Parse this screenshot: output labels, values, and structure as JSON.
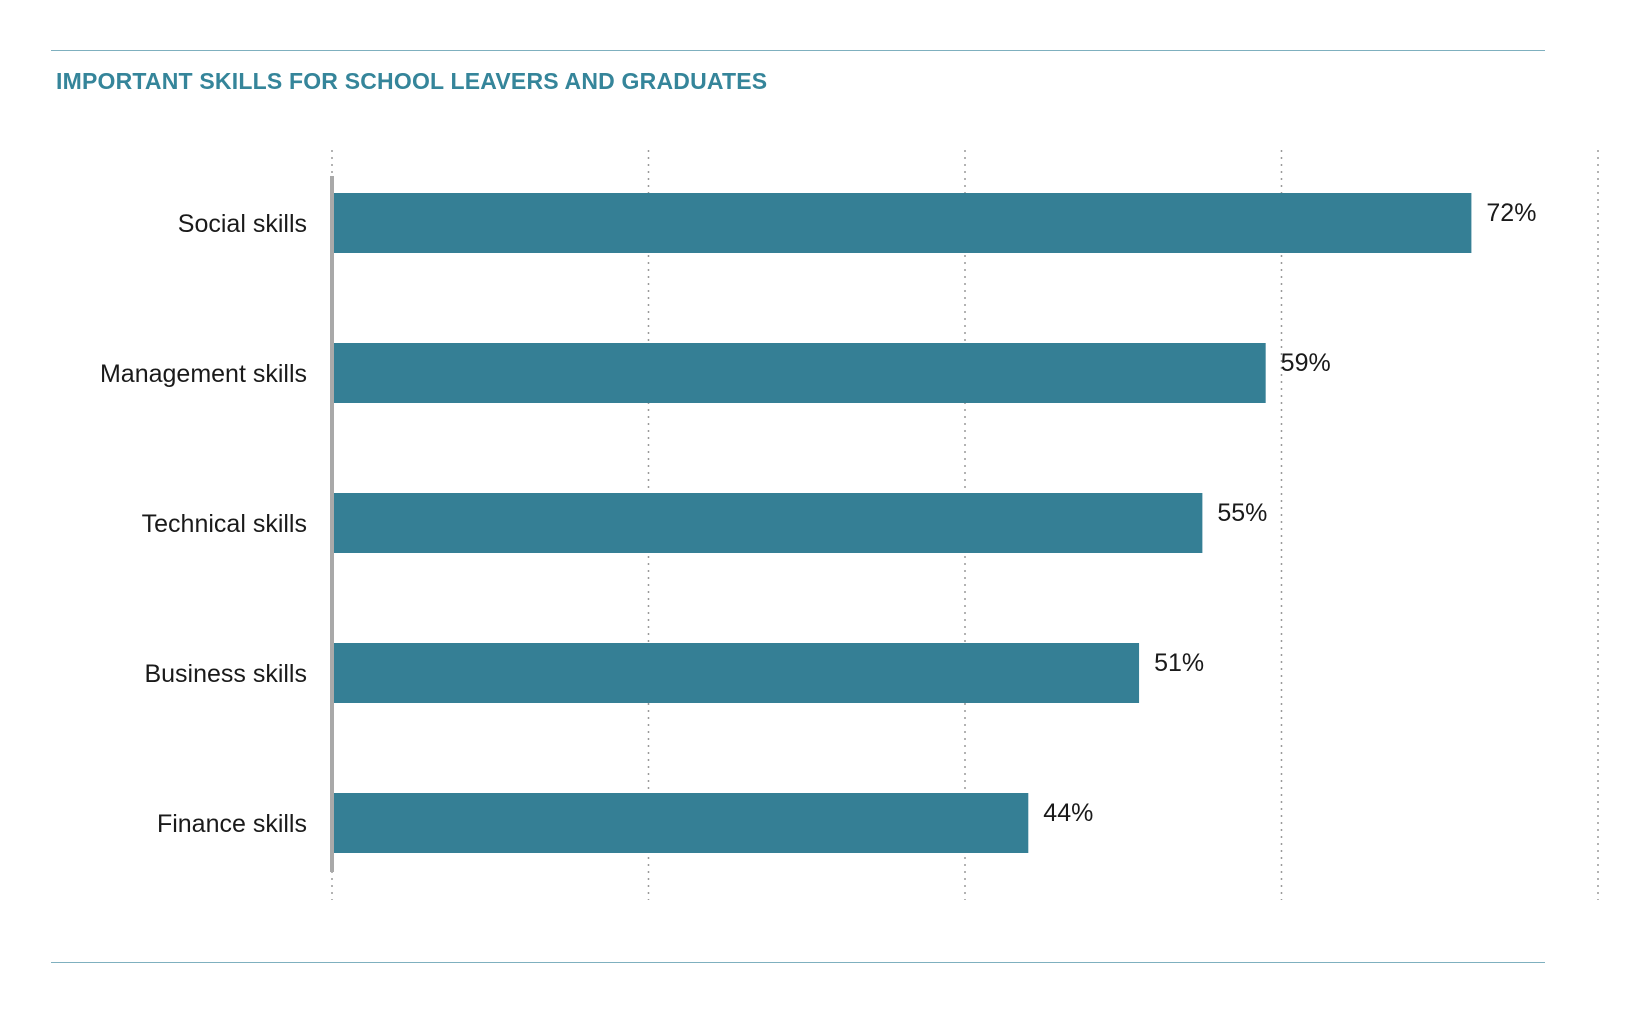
{
  "chart_data": {
    "type": "bar",
    "orientation": "horizontal",
    "title": "IMPORTANT SKILLS FOR SCHOOL LEAVERS AND GRADUATES",
    "categories": [
      "Social skills",
      "Management skills",
      "Technical skills",
      "Business skills",
      "Finance skills"
    ],
    "values": [
      72,
      59,
      55,
      51,
      44
    ],
    "value_labels": [
      "72%",
      "59%",
      "55%",
      "51%",
      "44%"
    ],
    "xlim": [
      0,
      80
    ],
    "grid": "vertical-dotted",
    "bar_color": "#357f95",
    "accent_color": "#35859a"
  }
}
